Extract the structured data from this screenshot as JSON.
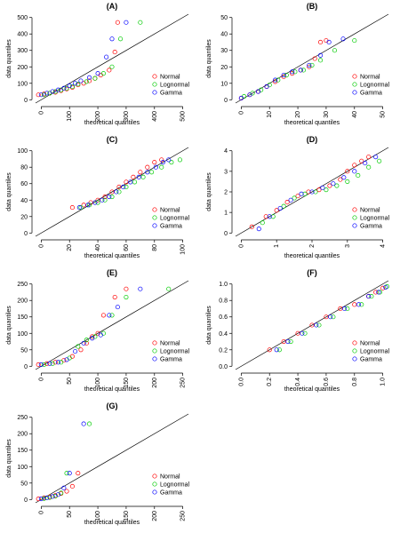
{
  "chart_data": [
    {
      "type": "scatter",
      "title": "(A)",
      "xlabel": "theoretical quantiles",
      "ylabel": "data quantiles",
      "xlim": [
        -20,
        520
      ],
      "ylim": [
        -20,
        520
      ],
      "xticks": [
        0,
        100,
        200,
        300,
        400,
        500
      ],
      "yticks": [
        0,
        100,
        200,
        300,
        400,
        500
      ],
      "legend": "lower right",
      "series": [
        {
          "name": "Normal",
          "color": "#ff0000",
          "x": [
            -10,
            10,
            30,
            50,
            70,
            90,
            110,
            130,
            150,
            170,
            190,
            210,
            240,
            260,
            270
          ],
          "y": [
            30,
            35,
            40,
            45,
            55,
            65,
            75,
            90,
            100,
            115,
            130,
            150,
            180,
            290,
            470
          ]
        },
        {
          "name": "Lognormal",
          "color": "#00cc00",
          "x": [
            10,
            30,
            50,
            70,
            90,
            110,
            130,
            160,
            190,
            220,
            250,
            280,
            350
          ],
          "y": [
            30,
            40,
            50,
            60,
            70,
            80,
            95,
            110,
            130,
            160,
            200,
            370,
            470
          ]
        },
        {
          "name": "Gamma",
          "color": "#0000ff",
          "x": [
            0,
            20,
            40,
            60,
            80,
            100,
            120,
            140,
            170,
            200,
            230,
            250,
            300
          ],
          "y": [
            30,
            40,
            50,
            60,
            70,
            85,
            100,
            115,
            135,
            160,
            260,
            370,
            470
          ]
        }
      ]
    },
    {
      "type": "scatter",
      "title": "(B)",
      "xlabel": "theoretical quantiles",
      "ylabel": "data quantiles",
      "xlim": [
        -2,
        52
      ],
      "ylim": [
        -2,
        52
      ],
      "xticks": [
        0,
        10,
        20,
        30,
        40,
        50
      ],
      "yticks": [
        0,
        10,
        20,
        30,
        40,
        50
      ],
      "legend": "lower right",
      "series": [
        {
          "name": "Normal",
          "color": "#ff0000",
          "x": [
            0,
            3,
            6,
            9,
            12,
            15,
            18,
            21,
            24,
            26,
            28,
            30
          ],
          "y": [
            1,
            3,
            5,
            8,
            11,
            14,
            16,
            18,
            20,
            25,
            35,
            36
          ]
        },
        {
          "name": "Lognormal",
          "color": "#00cc00",
          "x": [
            1,
            4,
            7,
            10,
            13,
            16,
            19,
            22,
            25,
            28,
            33,
            40
          ],
          "y": [
            2,
            4,
            6,
            9,
            12,
            15,
            17,
            18,
            21,
            24,
            30,
            36
          ]
        },
        {
          "name": "Gamma",
          "color": "#0000ff",
          "x": [
            0,
            3,
            6,
            9,
            12,
            15,
            18,
            21,
            24,
            28,
            31,
            36
          ],
          "y": [
            1,
            3,
            5,
            8,
            12,
            15,
            17,
            18,
            21,
            27,
            35,
            37
          ]
        }
      ]
    },
    {
      "type": "scatter",
      "title": "(C)",
      "xlabel": "theoretical quantiles",
      "ylabel": "data quantiles",
      "xlim": [
        -4,
        104
      ],
      "ylim": [
        -4,
        104
      ],
      "xticks": [
        0,
        20,
        40,
        60,
        80,
        100
      ],
      "yticks": [
        0,
        20,
        40,
        60,
        80,
        100
      ],
      "legend": "lower right",
      "series": [
        {
          "name": "Normal",
          "color": "#ff0000",
          "x": [
            22,
            30,
            35,
            40,
            45,
            50,
            55,
            60,
            65,
            70,
            75,
            80,
            85
          ],
          "y": [
            31,
            34,
            37,
            40,
            44,
            50,
            56,
            62,
            68,
            74,
            80,
            86,
            89
          ]
        },
        {
          "name": "Lognormal",
          "color": "#00cc00",
          "x": [
            28,
            34,
            40,
            45,
            50,
            55,
            60,
            66,
            72,
            78,
            85,
            92,
            98
          ],
          "y": [
            31,
            34,
            37,
            40,
            44,
            50,
            56,
            62,
            68,
            74,
            80,
            86,
            89
          ]
        },
        {
          "name": "Gamma",
          "color": "#0000ff",
          "x": [
            27,
            33,
            38,
            43,
            48,
            53,
            58,
            63,
            69,
            75,
            81,
            86,
            90
          ],
          "y": [
            31,
            34,
            37,
            40,
            44,
            50,
            56,
            62,
            68,
            74,
            80,
            86,
            89
          ]
        }
      ]
    },
    {
      "type": "scatter",
      "title": "(D)",
      "xlabel": "theoretical quantiles",
      "ylabel": "data quantiles",
      "xlim": [
        -0.16,
        4.16
      ],
      "ylim": [
        -0.16,
        4.16
      ],
      "xticks": [
        0,
        1,
        2,
        3,
        4
      ],
      "yticks": [
        0,
        1,
        2,
        3,
        4
      ],
      "legend": "lower right",
      "series": [
        {
          "name": "Normal",
          "color": "#ff0000",
          "x": [
            0.3,
            0.7,
            1.0,
            1.3,
            1.6,
            1.9,
            2.2,
            2.5,
            2.8,
            3.0,
            3.2,
            3.4,
            3.6
          ],
          "y": [
            0.3,
            0.8,
            1.1,
            1.5,
            1.8,
            2.0,
            2.1,
            2.3,
            2.6,
            3.0,
            3.3,
            3.5,
            3.7
          ]
        },
        {
          "name": "Lognormal",
          "color": "#00cc00",
          "x": [
            0.6,
            0.9,
            1.2,
            1.5,
            1.8,
            2.1,
            2.4,
            2.7,
            3.0,
            3.3,
            3.6,
            3.9
          ],
          "y": [
            0.5,
            0.8,
            1.3,
            1.7,
            1.9,
            2.0,
            2.1,
            2.3,
            2.5,
            2.8,
            3.2,
            3.5
          ]
        },
        {
          "name": "Gamma",
          "color": "#0000ff",
          "x": [
            0.5,
            0.8,
            1.1,
            1.4,
            1.7,
            2.0,
            2.3,
            2.6,
            2.9,
            3.2,
            3.5,
            3.8
          ],
          "y": [
            0.2,
            0.8,
            1.2,
            1.6,
            1.9,
            2.0,
            2.2,
            2.4,
            2.7,
            3.0,
            3.4,
            3.7
          ]
        }
      ]
    },
    {
      "type": "scatter",
      "title": "(E)",
      "xlabel": "theoretical quantiles",
      "ylabel": "data quantiles",
      "xlim": [
        -10,
        260
      ],
      "ylim": [
        -10,
        260
      ],
      "xticks": [
        0,
        50,
        100,
        150,
        200,
        250
      ],
      "yticks": [
        0,
        50,
        100,
        150,
        200,
        250
      ],
      "legend": "lower right",
      "series": [
        {
          "name": "Normal",
          "color": "#ff0000",
          "x": [
            -5,
            10,
            25,
            40,
            55,
            70,
            80,
            90,
            100,
            110,
            130,
            150
          ],
          "y": [
            5,
            8,
            12,
            18,
            30,
            50,
            70,
            90,
            100,
            155,
            210,
            235
          ]
        },
        {
          "name": "Lognormal",
          "color": "#00cc00",
          "x": [
            5,
            20,
            35,
            50,
            65,
            80,
            95,
            110,
            125,
            150,
            225
          ],
          "y": [
            5,
            8,
            12,
            25,
            60,
            80,
            90,
            100,
            155,
            210,
            235
          ]
        },
        {
          "name": "Gamma",
          "color": "#0000ff",
          "x": [
            0,
            15,
            30,
            45,
            60,
            75,
            90,
            105,
            120,
            135,
            175
          ],
          "y": [
            5,
            8,
            12,
            20,
            45,
            70,
            85,
            95,
            155,
            180,
            235
          ]
        }
      ]
    },
    {
      "type": "scatter",
      "title": "(F)",
      "xlabel": "theoretical quantiles",
      "ylabel": "data quantiles",
      "xlim": [
        -0.04,
        1.04
      ],
      "ylim": [
        -0.04,
        1.04
      ],
      "xticks": [
        {
          "value": 0,
          "label": "0.0"
        },
        0.2,
        0.4,
        0.6,
        0.8,
        {
          "value": 1,
          "label": "1.0"
        }
      ],
      "yticks": [
        {
          "value": 0,
          "label": "0.0"
        },
        0.2,
        0.4,
        0.6,
        0.8,
        {
          "value": 1,
          "label": "1.0"
        }
      ],
      "legend": "lower right",
      "series": [
        {
          "name": "Normal",
          "color": "#ff0000",
          "x": [
            0.2,
            0.3,
            0.4,
            0.5,
            0.6,
            0.7,
            0.8,
            0.9,
            0.95,
            1.0
          ],
          "y": [
            0.2,
            0.3,
            0.4,
            0.5,
            0.6,
            0.7,
            0.75,
            0.85,
            0.9,
            0.95
          ]
        },
        {
          "name": "Lognormal",
          "color": "#00cc00",
          "x": [
            0.27,
            0.35,
            0.45,
            0.55,
            0.65,
            0.75,
            0.85,
            0.92,
            0.98,
            1.03
          ],
          "y": [
            0.2,
            0.3,
            0.4,
            0.5,
            0.6,
            0.7,
            0.75,
            0.85,
            0.9,
            0.97
          ]
        },
        {
          "name": "Gamma",
          "color": "#0000ff",
          "x": [
            0.25,
            0.33,
            0.43,
            0.53,
            0.63,
            0.73,
            0.83,
            0.9,
            0.97,
            1.02
          ],
          "y": [
            0.2,
            0.3,
            0.4,
            0.5,
            0.6,
            0.7,
            0.75,
            0.85,
            0.9,
            0.96
          ]
        }
      ]
    },
    {
      "type": "scatter",
      "title": "(G)",
      "xlabel": "theoretical quantiles",
      "ylabel": "data quantiles",
      "xlim": [
        -10,
        260
      ],
      "ylim": [
        -10,
        260
      ],
      "xticks": [
        0,
        50,
        100,
        150,
        200,
        250
      ],
      "yticks": [
        0,
        50,
        100,
        150,
        200,
        250
      ],
      "legend": "lower right",
      "series": [
        {
          "name": "Normal",
          "color": "#ff0000",
          "x": [
            -5,
            5,
            15,
            25,
            35,
            45,
            55,
            65
          ],
          "y": [
            2,
            5,
            8,
            12,
            18,
            25,
            40,
            80
          ]
        },
        {
          "name": "Lognormal",
          "color": "#00cc00",
          "x": [
            5,
            15,
            25,
            35,
            45,
            85
          ],
          "y": [
            3,
            6,
            10,
            20,
            80,
            230
          ]
        },
        {
          "name": "Gamma",
          "color": "#0000ff",
          "x": [
            0,
            10,
            20,
            30,
            40,
            50,
            75
          ],
          "y": [
            2,
            5,
            9,
            15,
            35,
            80,
            230
          ]
        }
      ]
    }
  ]
}
